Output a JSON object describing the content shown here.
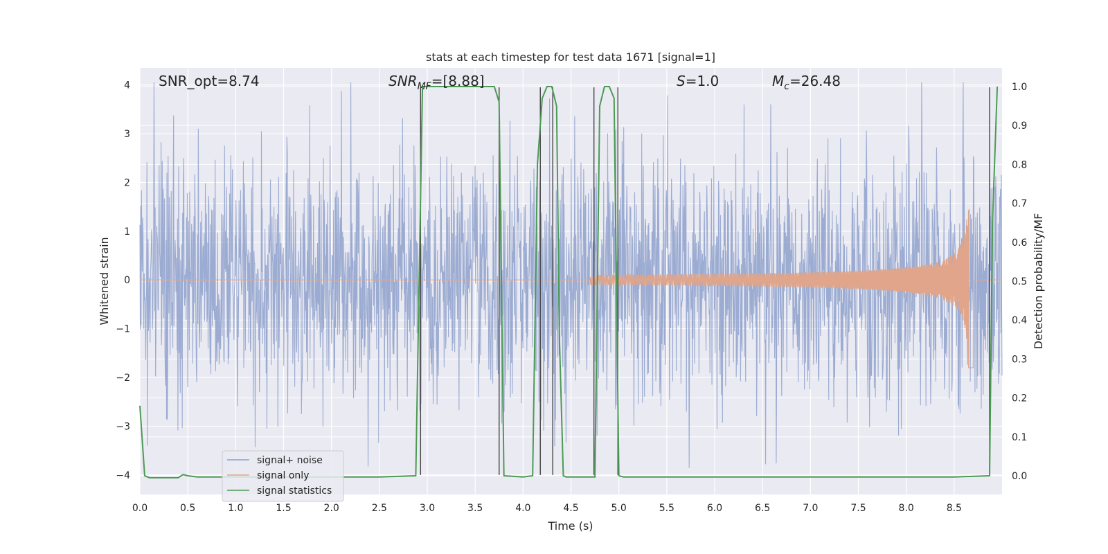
{
  "chart_data": {
    "type": "line",
    "title": "stats at each timestep for test data 1671 [signal=1]",
    "xlabel": "Time (s)",
    "ylabel": "Whitened strain",
    "y2label": "Detection probability/MF",
    "xlim": [
      0.0,
      9.0
    ],
    "ylim": [
      -4.4,
      4.35
    ],
    "y2lim": [
      -0.048,
      1.048
    ],
    "xticks": [
      "0.0",
      "0.5",
      "1.0",
      "1.5",
      "2.0",
      "2.5",
      "3.0",
      "3.5",
      "4.0",
      "4.5",
      "5.0",
      "5.5",
      "6.0",
      "6.5",
      "7.0",
      "7.5",
      "8.0",
      "8.5"
    ],
    "yticks": [
      "−4",
      "−3",
      "−2",
      "−1",
      "0",
      "1",
      "2",
      "3",
      "4"
    ],
    "y2ticks": [
      "0.0",
      "0.1",
      "0.2",
      "0.3",
      "0.4",
      "0.5",
      "0.6",
      "0.7",
      "0.8",
      "0.9",
      "1.0"
    ],
    "grid": true,
    "legend_position": "lower-left",
    "annotations": {
      "snr_opt": "SNR_opt=8.74",
      "snr_mf_main": "SNR",
      "snr_mf_sub": "MF",
      "snr_mf_rest": "=[8.88]",
      "s_var": "S",
      "s_rest": "=1.0",
      "mc_main": "M",
      "mc_sub": "c",
      "mc_rest": "=26.48"
    },
    "series": [
      {
        "name": "signal+ noise",
        "color": "#8da0cb",
        "description_values": "whitened noise, approx. within [-4, 4]"
      },
      {
        "name": "signal only",
        "color": "#e0a58a",
        "chirp": {
          "t_start": 4.7,
          "t_merge": 8.65,
          "peak_amplitude": 1.9
        }
      },
      {
        "name": "signal statistics",
        "color": "#4c9a55",
        "axis": "right",
        "x": [
          0.0,
          0.05,
          0.1,
          0.2,
          0.4,
          0.45,
          0.5,
          0.6,
          1.0,
          1.5,
          2.0,
          2.5,
          2.88,
          2.95,
          3.0,
          3.7,
          3.75,
          3.8,
          4.0,
          4.1,
          4.15,
          4.2,
          4.25,
          4.3,
          4.35,
          4.38,
          4.42,
          4.45,
          4.5,
          4.55,
          4.75,
          4.8,
          4.85,
          4.9,
          4.95,
          5.0,
          5.05,
          5.5,
          6.0,
          7.0,
          8.0,
          8.5,
          8.87,
          8.9,
          8.95
        ],
        "y": [
          0.18,
          0.0,
          -0.005,
          -0.005,
          -0.005,
          0.003,
          0.0,
          -0.003,
          -0.003,
          -0.003,
          -0.003,
          -0.003,
          0.0,
          1.0,
          1.0,
          1.0,
          0.96,
          0.0,
          -0.003,
          0.0,
          0.8,
          0.97,
          1.0,
          1.0,
          0.95,
          0.35,
          0.0,
          -0.003,
          -0.003,
          -0.003,
          -0.003,
          0.95,
          1.0,
          1.0,
          0.97,
          0.0,
          -0.003,
          -0.003,
          -0.003,
          -0.003,
          -0.003,
          -0.003,
          0.0,
          0.65,
          1.0
        ]
      }
    ],
    "vertical_lines_x": [
      2.93,
      3.75,
      4.18,
      4.31,
      4.74,
      4.99,
      8.87
    ]
  }
}
